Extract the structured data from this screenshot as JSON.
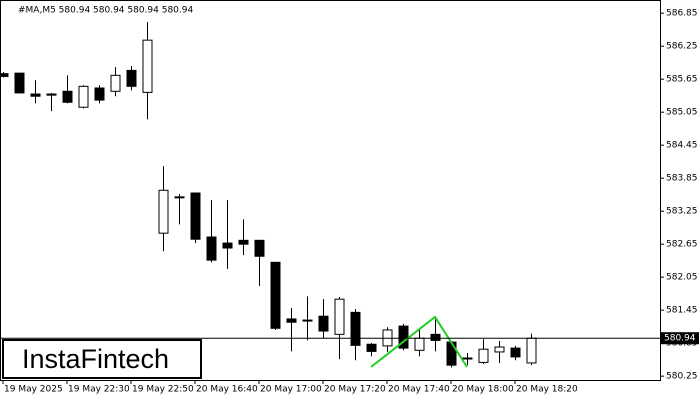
{
  "chart_data": {
    "type": "candlestick",
    "title": "#MA,M5  580.94 580.94 580.94 580.94",
    "watermark": "InstaFintech",
    "categories": [
      "19 May 2025",
      null,
      null,
      null,
      "19 May 22:30",
      null,
      null,
      null,
      "19 May 22:50",
      null,
      null,
      null,
      "20 May 16:40",
      null,
      null,
      null,
      "20 May 17:00",
      null,
      null,
      null,
      "20 May 17:20",
      null,
      null,
      null,
      "20 May 17:40",
      null,
      null,
      null,
      "20 May 18:00",
      null,
      null,
      null,
      "20 May 18:20",
      null
    ],
    "open": [
      585.75,
      585.76,
      585.38,
      585.38,
      585.43,
      585.14,
      585.49,
      585.43,
      585.81,
      585.41,
      582.85,
      583.5,
      583.58,
      582.78,
      582.67,
      582.72,
      582.72,
      582.32,
      581.29,
      581.27,
      581.34,
      581.01,
      581.41,
      580.83,
      580.8,
      581.16,
      580.72,
      581.01,
      580.87,
      580.58,
      580.5,
      580.69,
      580.76,
      580.49
    ],
    "high": [
      585.78,
      585.76,
      585.63,
      585.4,
      585.72,
      585.54,
      585.54,
      585.87,
      585.89,
      586.69,
      584.07,
      583.56,
      583.58,
      583.45,
      583.45,
      583.1,
      582.72,
      582.32,
      581.49,
      581.7,
      581.65,
      581.69,
      581.47,
      580.85,
      581.14,
      581.2,
      581.12,
      581.3,
      580.89,
      580.67,
      580.92,
      580.89,
      580.8,
      581.02
    ],
    "low": [
      585.68,
      585.4,
      585.21,
      585.07,
      585.21,
      585.12,
      585.21,
      585.34,
      585.45,
      584.92,
      582.52,
      583.01,
      582.67,
      582.32,
      582.2,
      582.45,
      581.89,
      581.09,
      580.7,
      580.9,
      580.94,
      580.56,
      580.54,
      580.61,
      580.69,
      580.72,
      580.61,
      580.7,
      580.41,
      580.45,
      580.47,
      580.49,
      580.54,
      580.45
    ],
    "close": [
      585.7,
      585.4,
      585.34,
      585.36,
      585.23,
      585.52,
      585.27,
      585.72,
      585.52,
      586.36,
      583.63,
      583.51,
      582.74,
      582.36,
      582.58,
      582.65,
      582.43,
      581.12,
      581.23,
      581.26,
      581.07,
      581.65,
      580.81,
      580.7,
      581.09,
      580.76,
      580.94,
      580.9,
      580.45,
      580.58,
      580.74,
      580.78,
      580.6,
      580.94
    ],
    "up_color": "#ffffff",
    "down_color": "#000000",
    "current_price": 580.94,
    "ylim": [
      580.18,
      587.09
    ],
    "yticks": [
      580.25,
      580.85,
      581.45,
      582.05,
      582.65,
      583.25,
      583.85,
      584.45,
      585.05,
      585.65,
      586.25,
      586.85
    ]
  }
}
